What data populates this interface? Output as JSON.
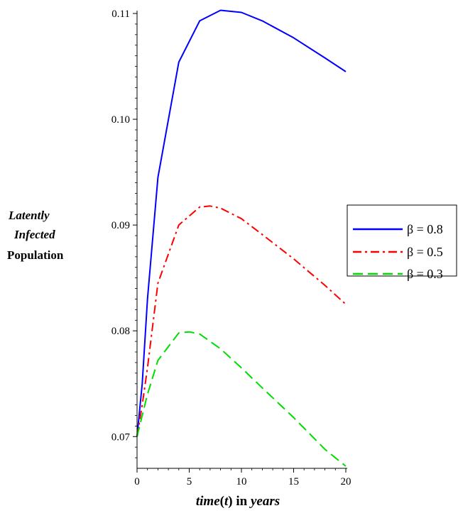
{
  "chart_data": {
    "type": "line",
    "title": "",
    "xlabel": {
      "parts": [
        {
          "text": "time",
          "italic": true
        },
        {
          "text": "(",
          "italic": false
        },
        {
          "text": "t",
          "italic": true
        },
        {
          "text": ")",
          "italic": false
        },
        {
          "text": " in ",
          "italic": false
        },
        {
          "text": "years",
          "italic": true
        }
      ]
    },
    "ylabel": {
      "lines": [
        {
          "text": "Latently",
          "italic": true
        },
        {
          "text": "Infected",
          "italic": true
        },
        {
          "text": "Population",
          "italic": false
        }
      ]
    },
    "xlim": [
      0,
      20
    ],
    "ylim": [
      0.067,
      0.11
    ],
    "xticks": [
      0,
      5,
      10,
      15,
      20
    ],
    "xtick_labels": [
      "0",
      "5",
      "10",
      "15",
      "20"
    ],
    "yticks": [
      0.07,
      0.08,
      0.09,
      0.1,
      0.11
    ],
    "ytick_labels": [
      "0.07",
      "0.08",
      "0.09",
      "0.10",
      "0.11"
    ],
    "grid": false,
    "legend_position": "right",
    "series": [
      {
        "name": "β = 0.8",
        "color": "#0000ff",
        "dash": "solid",
        "x": [
          0,
          0.5,
          1,
          2,
          4,
          6,
          8,
          10,
          12,
          15,
          18,
          20
        ],
        "y": [
          0.07,
          0.075,
          0.083,
          0.0945,
          0.1054,
          0.1093,
          0.1103,
          0.1101,
          0.1093,
          0.1077,
          0.1058,
          0.1045
        ]
      },
      {
        "name": "β = 0.5",
        "color": "#ff0000",
        "dash": "dashdot",
        "x": [
          0,
          0.5,
          1,
          2,
          4,
          6,
          7,
          8,
          10,
          12,
          15,
          18,
          20
        ],
        "y": [
          0.07,
          0.073,
          0.0765,
          0.0845,
          0.09,
          0.0917,
          0.0918,
          0.0916,
          0.0906,
          0.0891,
          0.0868,
          0.0843,
          0.0825
        ]
      },
      {
        "name": "β = 0.3",
        "color": "#00dd00",
        "dash": "dashed",
        "x": [
          0,
          0.5,
          1,
          2,
          4,
          5,
          6,
          8,
          10,
          12,
          15,
          18,
          20
        ],
        "y": [
          0.07,
          0.072,
          0.074,
          0.0772,
          0.0798,
          0.0799,
          0.0797,
          0.0783,
          0.0765,
          0.0746,
          0.0718,
          0.0688,
          0.0672
        ]
      }
    ]
  }
}
